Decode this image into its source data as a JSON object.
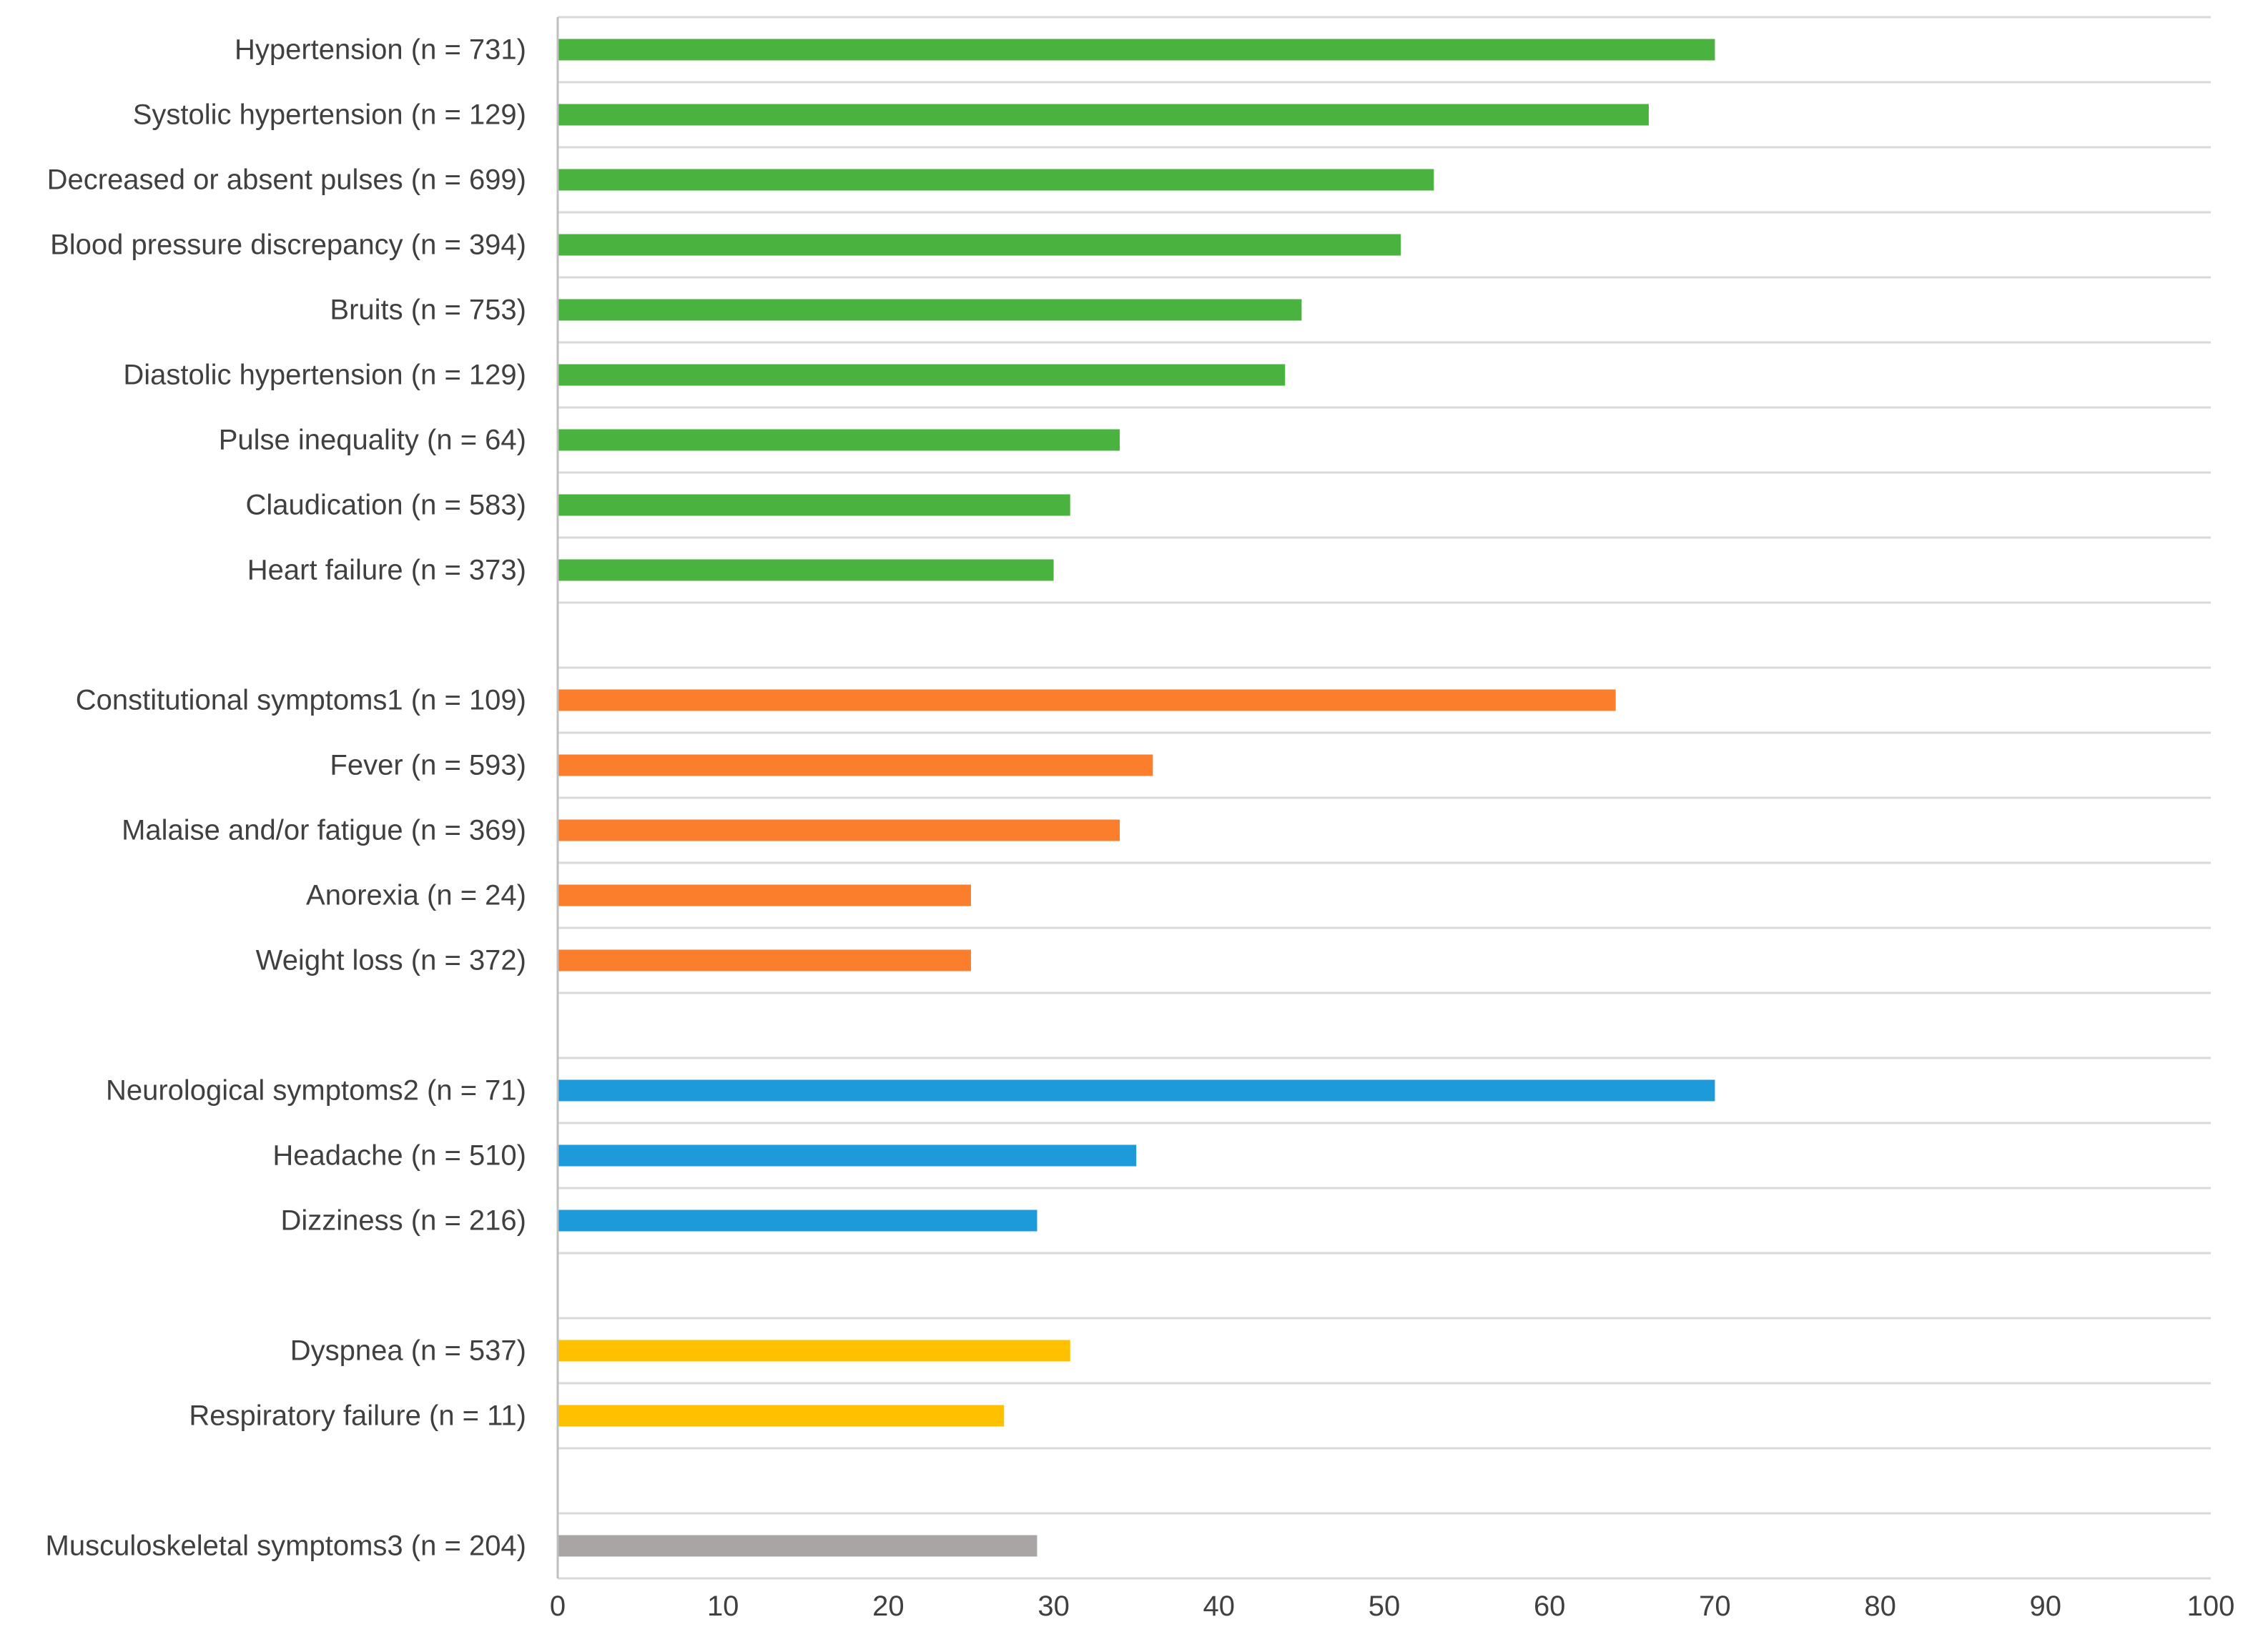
{
  "chart_data": {
    "type": "bar",
    "orientation": "horizontal",
    "title": "",
    "xlabel": "",
    "ylabel": "",
    "xlim": [
      0,
      100
    ],
    "xticks": [
      0,
      10,
      20,
      30,
      40,
      50,
      60,
      70,
      80,
      90,
      100
    ],
    "grid": "horizontal",
    "legend": "none",
    "colors": {
      "green": "#4AB23F",
      "orange": "#FB7E2C",
      "blue": "#1C9AD9",
      "yellow": "#FFC000",
      "gray": "#A9A5A5",
      "gridline": "#D9D9D9",
      "axis": "#BFBFBF",
      "text": "#404040"
    },
    "rows": [
      {
        "label": "Hypertension (n = 731)",
        "value": 70,
        "color": "green"
      },
      {
        "label": "Systolic hypertension (n = 129)",
        "value": 66,
        "color": "green"
      },
      {
        "label": "Decreased or absent pulses (n = 699)",
        "value": 53,
        "color": "green"
      },
      {
        "label": "Blood pressure discrepancy (n = 394)",
        "value": 51,
        "color": "green"
      },
      {
        "label": "Bruits (n = 753)",
        "value": 45,
        "color": "green"
      },
      {
        "label": "Diastolic hypertension (n = 129)",
        "value": 44,
        "color": "green"
      },
      {
        "label": "Pulse inequality (n = 64)",
        "value": 34,
        "color": "green"
      },
      {
        "label": "Claudication (n = 583)",
        "value": 31,
        "color": "green"
      },
      {
        "label": "Heart failure (n = 373)",
        "value": 30,
        "color": "green"
      },
      {
        "label": "",
        "value": null,
        "color": null
      },
      {
        "label": "Constitutional symptoms1 (n = 109)",
        "value": 64,
        "color": "orange"
      },
      {
        "label": "Fever (n = 593)",
        "value": 36,
        "color": "orange"
      },
      {
        "label": "Malaise and/or fatigue (n = 369)",
        "value": 34,
        "color": "orange"
      },
      {
        "label": "Anorexia (n = 24)",
        "value": 25,
        "color": "orange"
      },
      {
        "label": "Weight loss (n = 372)",
        "value": 25,
        "color": "orange"
      },
      {
        "label": "",
        "value": null,
        "color": null
      },
      {
        "label": "Neurological symptoms2 (n = 71)",
        "value": 70,
        "color": "blue"
      },
      {
        "label": "Headache (n = 510)",
        "value": 35,
        "color": "blue"
      },
      {
        "label": "Dizziness (n = 216)",
        "value": 29,
        "color": "blue"
      },
      {
        "label": "",
        "value": null,
        "color": null
      },
      {
        "label": "Dyspnea (n = 537)",
        "value": 31,
        "color": "yellow"
      },
      {
        "label": "Respiratory failure (n = 11)",
        "value": 27,
        "color": "yellow"
      },
      {
        "label": "",
        "value": null,
        "color": null
      },
      {
        "label": "Musculoskeletal symptoms3 (n = 204)",
        "value": 29,
        "color": "gray"
      }
    ]
  }
}
